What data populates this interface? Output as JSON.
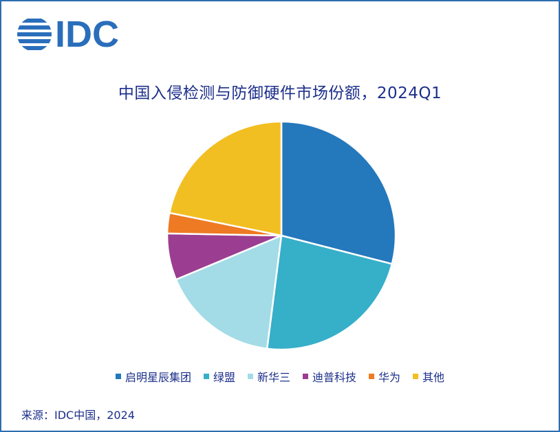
{
  "brand": {
    "logo_text": "IDC",
    "logo_color": "#2A6EBB"
  },
  "title": "中国入侵检测与防御硬件市场份额，2024Q1",
  "source": "来源：IDC中国，2024",
  "chart_data": {
    "type": "pie",
    "title": "中国入侵检测与防御硬件市场份额，2024Q1",
    "legend_position": "bottom",
    "slices": [
      {
        "name": "启明星辰集团",
        "value": 29.0,
        "color": "#2478BC"
      },
      {
        "name": "绿盟",
        "value": 23.0,
        "color": "#36AFC9"
      },
      {
        "name": "新华三",
        "value": 16.7,
        "color": "#A3DCE6"
      },
      {
        "name": "迪普科技",
        "value": 6.6,
        "color": "#9B3E91"
      },
      {
        "name": "华为",
        "value": 2.9,
        "color": "#EE7A23"
      },
      {
        "name": "其他",
        "value": 21.8,
        "color": "#F2BF22"
      }
    ]
  }
}
